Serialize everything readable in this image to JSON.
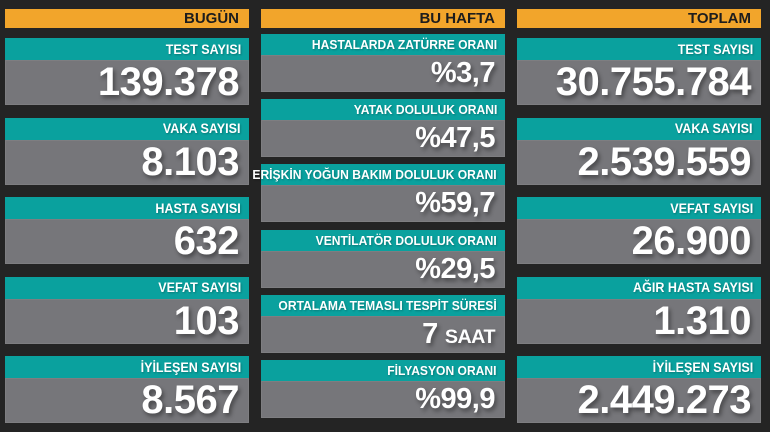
{
  "colors": {
    "background": "#242424",
    "header_bg": "#f2a52b",
    "header_text": "#1d1d1d",
    "label_bg": "#0aa19e",
    "label_text": "#ffffff",
    "value_bg": "#76767a",
    "value_text": "#ffffff"
  },
  "chart_data": {
    "type": "table",
    "title": "COVID-19 günlük durum tablosu",
    "groups": [
      {
        "name": "BUGÜN",
        "cards": [
          {
            "label": "TEST SAYISI",
            "value": "139.378"
          },
          {
            "label": "VAKA SAYISI",
            "value": "8.103"
          },
          {
            "label": "HASTA SAYISI",
            "value": "632"
          },
          {
            "label": "VEFAT SAYISI",
            "value": "103"
          },
          {
            "label": "İYİLEŞEN SAYISI",
            "value": "8.567"
          }
        ]
      },
      {
        "name": "BU HAFTA",
        "cards": [
          {
            "label": "HASTALARDA ZATÜRRE ORANI",
            "value": "%3,7"
          },
          {
            "label": "YATAK DOLULUK ORANI",
            "value": "%47,5"
          },
          {
            "label": "ERİŞKİN YOĞUN BAKIM DOLULUK ORANI",
            "value": "%59,7"
          },
          {
            "label": "VENTİLATÖR DOLULUK ORANI",
            "value": "%29,5"
          },
          {
            "label": "ORTALAMA TEMASLI TESPİT SÜRESİ",
            "value": "7",
            "value_suffix": "SAAT"
          },
          {
            "label": "FİLYASYON ORANI",
            "value": "%99,9"
          }
        ]
      },
      {
        "name": "TOPLAM",
        "cards": [
          {
            "label": "TEST SAYISI",
            "value": "30.755.784"
          },
          {
            "label": "VAKA SAYISI",
            "value": "2.539.559"
          },
          {
            "label": "VEFAT SAYISI",
            "value": "26.900"
          },
          {
            "label": "AĞIR HASTA SAYISI",
            "value": "1.310"
          },
          {
            "label": "İYİLEŞEN SAYISI",
            "value": "2.449.273"
          }
        ]
      }
    ]
  }
}
